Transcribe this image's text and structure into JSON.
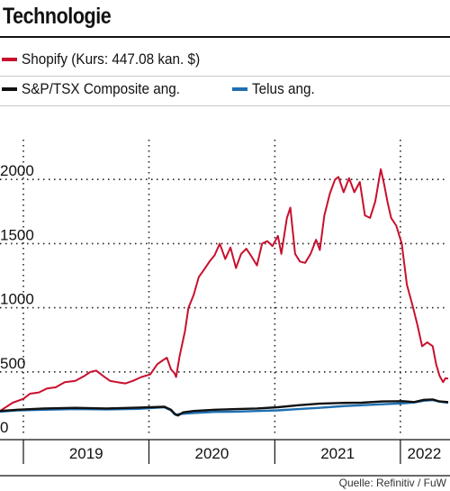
{
  "title": "Technologie",
  "source": "Quelle: Refinitiv / FuW",
  "legend": [
    {
      "label": "Shopify (Kurs: 447.08 kan. $)",
      "color": "#c8102e"
    },
    {
      "label": "S&P/TSX Composite ang.",
      "color": "#111111"
    },
    {
      "label": "Telus ang.",
      "color": "#1f6fb2"
    }
  ],
  "chart_data": {
    "type": "line",
    "ylim": [
      0,
      2300
    ],
    "yticks": [
      "2000",
      "1500",
      "1000",
      "500",
      "0"
    ],
    "ytick_values": [
      2000,
      1500,
      1000,
      500,
      0
    ],
    "xlim": [
      "2018-10-25",
      "2022-05-20"
    ],
    "xtick_labels": [
      "2019",
      "2020",
      "2021",
      "2022"
    ],
    "year_boundaries": [
      "2019-01-01",
      "2020-01-01",
      "2021-01-01",
      "2022-01-01"
    ],
    "grid": true,
    "series": [
      {
        "name": "Shopify (Kurs: 447.08 kan. $)",
        "color": "#c8102e",
        "points": [
          [
            "2018-10-25",
            195
          ],
          [
            "2018-12-01",
            260
          ],
          [
            "2019-01-01",
            290
          ],
          [
            "2019-01-20",
            330
          ],
          [
            "2019-02-15",
            340
          ],
          [
            "2019-03-10",
            370
          ],
          [
            "2019-04-05",
            380
          ],
          [
            "2019-05-01",
            420
          ],
          [
            "2019-06-01",
            430
          ],
          [
            "2019-06-25",
            465
          ],
          [
            "2019-07-15",
            500
          ],
          [
            "2019-08-01",
            510
          ],
          [
            "2019-08-20",
            470
          ],
          [
            "2019-09-10",
            430
          ],
          [
            "2019-10-01",
            420
          ],
          [
            "2019-10-25",
            410
          ],
          [
            "2019-11-15",
            430
          ],
          [
            "2019-12-10",
            460
          ],
          [
            "2020-01-05",
            480
          ],
          [
            "2020-01-25",
            560
          ],
          [
            "2020-02-10",
            590
          ],
          [
            "2020-02-22",
            610
          ],
          [
            "2020-03-05",
            520
          ],
          [
            "2020-03-15",
            490
          ],
          [
            "2020-03-20",
            460
          ],
          [
            "2020-03-30",
            620
          ],
          [
            "2020-04-15",
            820
          ],
          [
            "2020-04-25",
            1000
          ],
          [
            "2020-05-10",
            1100
          ],
          [
            "2020-05-25",
            1240
          ],
          [
            "2020-06-10",
            1300
          ],
          [
            "2020-06-25",
            1360
          ],
          [
            "2020-07-10",
            1410
          ],
          [
            "2020-07-25",
            1500
          ],
          [
            "2020-08-10",
            1380
          ],
          [
            "2020-08-25",
            1470
          ],
          [
            "2020-09-10",
            1310
          ],
          [
            "2020-09-25",
            1420
          ],
          [
            "2020-10-10",
            1460
          ],
          [
            "2020-10-25",
            1400
          ],
          [
            "2020-11-10",
            1330
          ],
          [
            "2020-11-25",
            1500
          ],
          [
            "2020-12-10",
            1520
          ],
          [
            "2020-12-25",
            1480
          ],
          [
            "2021-01-10",
            1560
          ],
          [
            "2021-01-20",
            1420
          ],
          [
            "2021-02-05",
            1700
          ],
          [
            "2021-02-15",
            1780
          ],
          [
            "2021-03-01",
            1420
          ],
          [
            "2021-03-15",
            1360
          ],
          [
            "2021-03-30",
            1350
          ],
          [
            "2021-04-15",
            1420
          ],
          [
            "2021-05-01",
            1530
          ],
          [
            "2021-05-12",
            1450
          ],
          [
            "2021-05-25",
            1720
          ],
          [
            "2021-06-10",
            1890
          ],
          [
            "2021-06-25",
            2000
          ],
          [
            "2021-07-05",
            2020
          ],
          [
            "2021-07-20",
            1900
          ],
          [
            "2021-08-05",
            2010
          ],
          [
            "2021-08-20",
            1900
          ],
          [
            "2021-09-05",
            1980
          ],
          [
            "2021-09-20",
            1720
          ],
          [
            "2021-10-05",
            1700
          ],
          [
            "2021-10-20",
            1830
          ],
          [
            "2021-11-05",
            2080
          ],
          [
            "2021-11-15",
            1960
          ],
          [
            "2021-11-25",
            1820
          ],
          [
            "2021-12-05",
            1700
          ],
          [
            "2021-12-20",
            1640
          ],
          [
            "2022-01-05",
            1500
          ],
          [
            "2022-01-20",
            1180
          ],
          [
            "2022-02-05",
            1020
          ],
          [
            "2022-02-20",
            860
          ],
          [
            "2022-03-05",
            700
          ],
          [
            "2022-03-20",
            730
          ],
          [
            "2022-04-05",
            700
          ],
          [
            "2022-04-15",
            560
          ],
          [
            "2022-04-25",
            470
          ],
          [
            "2022-05-05",
            420
          ],
          [
            "2022-05-12",
            450
          ],
          [
            "2022-05-20",
            447
          ]
        ]
      },
      {
        "name": "S&P/TSX Composite ang.",
        "color": "#111111",
        "points": [
          [
            "2018-10-25",
            195
          ],
          [
            "2018-12-15",
            205
          ],
          [
            "2019-03-01",
            215
          ],
          [
            "2019-06-01",
            220
          ],
          [
            "2019-09-01",
            215
          ],
          [
            "2019-12-01",
            222
          ],
          [
            "2020-02-15",
            228
          ],
          [
            "2020-03-05",
            205
          ],
          [
            "2020-03-15",
            175
          ],
          [
            "2020-03-25",
            160
          ],
          [
            "2020-04-10",
            185
          ],
          [
            "2020-05-10",
            195
          ],
          [
            "2020-07-10",
            205
          ],
          [
            "2020-09-10",
            210
          ],
          [
            "2020-11-10",
            215
          ],
          [
            "2021-01-10",
            225
          ],
          [
            "2021-03-10",
            240
          ],
          [
            "2021-05-10",
            252
          ],
          [
            "2021-07-10",
            258
          ],
          [
            "2021-09-10",
            260
          ],
          [
            "2021-11-10",
            270
          ],
          [
            "2022-01-10",
            272
          ],
          [
            "2022-02-10",
            265
          ],
          [
            "2022-03-10",
            282
          ],
          [
            "2022-04-05",
            285
          ],
          [
            "2022-04-25",
            270
          ],
          [
            "2022-05-20",
            265
          ]
        ]
      },
      {
        "name": "Telus ang.",
        "color": "#1f6fb2",
        "points": [
          [
            "2018-10-25",
            190
          ],
          [
            "2018-12-15",
            200
          ],
          [
            "2019-03-01",
            205
          ],
          [
            "2019-06-01",
            210
          ],
          [
            "2019-09-01",
            208
          ],
          [
            "2019-12-01",
            212
          ],
          [
            "2020-02-15",
            225
          ],
          [
            "2020-03-05",
            200
          ],
          [
            "2020-03-18",
            165
          ],
          [
            "2020-03-30",
            172
          ],
          [
            "2020-05-10",
            180
          ],
          [
            "2020-07-10",
            188
          ],
          [
            "2020-09-10",
            190
          ],
          [
            "2020-11-10",
            195
          ],
          [
            "2021-01-10",
            200
          ],
          [
            "2021-03-10",
            210
          ],
          [
            "2021-05-10",
            220
          ],
          [
            "2021-07-10",
            232
          ],
          [
            "2021-09-10",
            240
          ],
          [
            "2021-11-10",
            248
          ],
          [
            "2022-01-10",
            255
          ],
          [
            "2022-02-10",
            262
          ],
          [
            "2022-03-10",
            275
          ],
          [
            "2022-04-05",
            280
          ],
          [
            "2022-04-25",
            268
          ],
          [
            "2022-05-20",
            260
          ]
        ]
      }
    ]
  }
}
